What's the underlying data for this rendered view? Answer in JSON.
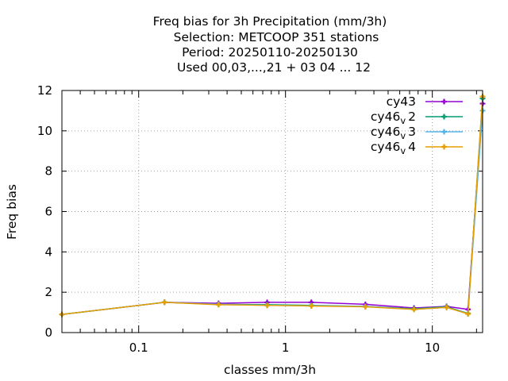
{
  "chart_data": {
    "type": "line",
    "title_lines": [
      "Freq bias  for 3h Precipitation (mm/3h)",
      "Selection: METCOOP     351 stations",
      "Period: 20250110-20250130",
      "Used  00,03,...,21  + 03 04 ... 12"
    ],
    "xlabel": "classes mm/3h",
    "ylabel": "Freq bias",
    "x_scale": "log",
    "xlim": [
      0.03,
      22
    ],
    "ylim": [
      0,
      12
    ],
    "x_ticks": [
      0.1,
      1,
      10
    ],
    "x_tick_labels": [
      "0.1",
      "1",
      "10"
    ],
    "y_ticks": [
      0,
      2,
      4,
      6,
      8,
      10,
      12
    ],
    "y_tick_labels": [
      "0",
      "2",
      "4",
      "6",
      "8",
      "10",
      "12"
    ],
    "grid": true,
    "legend_position": "top-right",
    "x": [
      0.03,
      0.15,
      0.35,
      0.75,
      1.5,
      3.5,
      7.5,
      12.5,
      17.5,
      22
    ],
    "series": [
      {
        "name": "cy43",
        "legend_base": "cy43",
        "legend_sub": "",
        "legend_tail": "",
        "color": "#9400d3",
        "values": [
          0.9,
          1.5,
          1.45,
          1.5,
          1.5,
          1.4,
          1.22,
          1.3,
          1.15,
          11.35
        ]
      },
      {
        "name": "cy46_v2",
        "legend_base": "cy46",
        "legend_sub": "v",
        "legend_tail": "2",
        "color": "#009e73",
        "values": [
          0.9,
          1.5,
          1.4,
          1.38,
          1.35,
          1.3,
          1.18,
          1.28,
          0.95,
          11.6
        ]
      },
      {
        "name": "cy46_v3",
        "legend_base": "cy46",
        "legend_sub": "v",
        "legend_tail": "3",
        "color": "#56b4e9",
        "values": [
          0.9,
          1.5,
          1.4,
          1.35,
          1.33,
          1.3,
          1.15,
          1.25,
          0.93,
          11.0
        ]
      },
      {
        "name": "cy46_v4",
        "legend_base": "cy46",
        "legend_sub": "v",
        "legend_tail": "4",
        "color": "#e69f00",
        "values": [
          0.9,
          1.5,
          1.38,
          1.35,
          1.32,
          1.28,
          1.15,
          1.25,
          0.93,
          11.7
        ]
      }
    ]
  }
}
